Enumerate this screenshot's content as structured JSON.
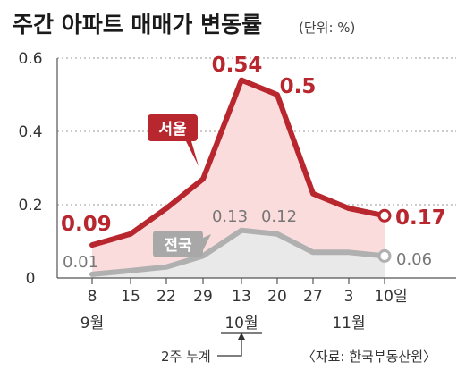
{
  "chart_data": {
    "type": "area",
    "title": "주간 아파트 매매가 변동률",
    "unit_note": "(단위: %)",
    "categories": [
      "8",
      "15",
      "22",
      "29",
      "13",
      "20",
      "27",
      "3",
      "10일"
    ],
    "month_labels": [
      "9월",
      "10월",
      "11월"
    ],
    "ylim": [
      0,
      0.6
    ],
    "y_ticks": [
      "0",
      "0.2",
      "0.4",
      "0.6"
    ],
    "grid": true,
    "series": [
      {
        "name": "서울",
        "color": "#b8262e",
        "fill": "#fbdcdc",
        "values": [
          0.09,
          0.12,
          0.19,
          0.27,
          0.54,
          0.5,
          0.23,
          0.19,
          0.17
        ],
        "labels": [
          {
            "index": 0,
            "text": "0.09"
          },
          {
            "index": 4,
            "text": "0.54"
          },
          {
            "index": 5,
            "text": "0.5"
          },
          {
            "index": 8,
            "text": "0.17"
          }
        ]
      },
      {
        "name": "전국",
        "color": "#b0b0b0",
        "fill": "#e9e9e9",
        "values": [
          0.01,
          0.02,
          0.03,
          0.06,
          0.13,
          0.12,
          0.07,
          0.07,
          0.06
        ],
        "labels": [
          {
            "index": 0,
            "text": "0.01"
          },
          {
            "index": 4,
            "text": "0.13"
          },
          {
            "index": 5,
            "text": "0.12"
          },
          {
            "index": 8,
            "text": "0.06"
          }
        ]
      }
    ],
    "annotation": "2주 누계",
    "source": "〈자료: 한국부동산원〉"
  }
}
